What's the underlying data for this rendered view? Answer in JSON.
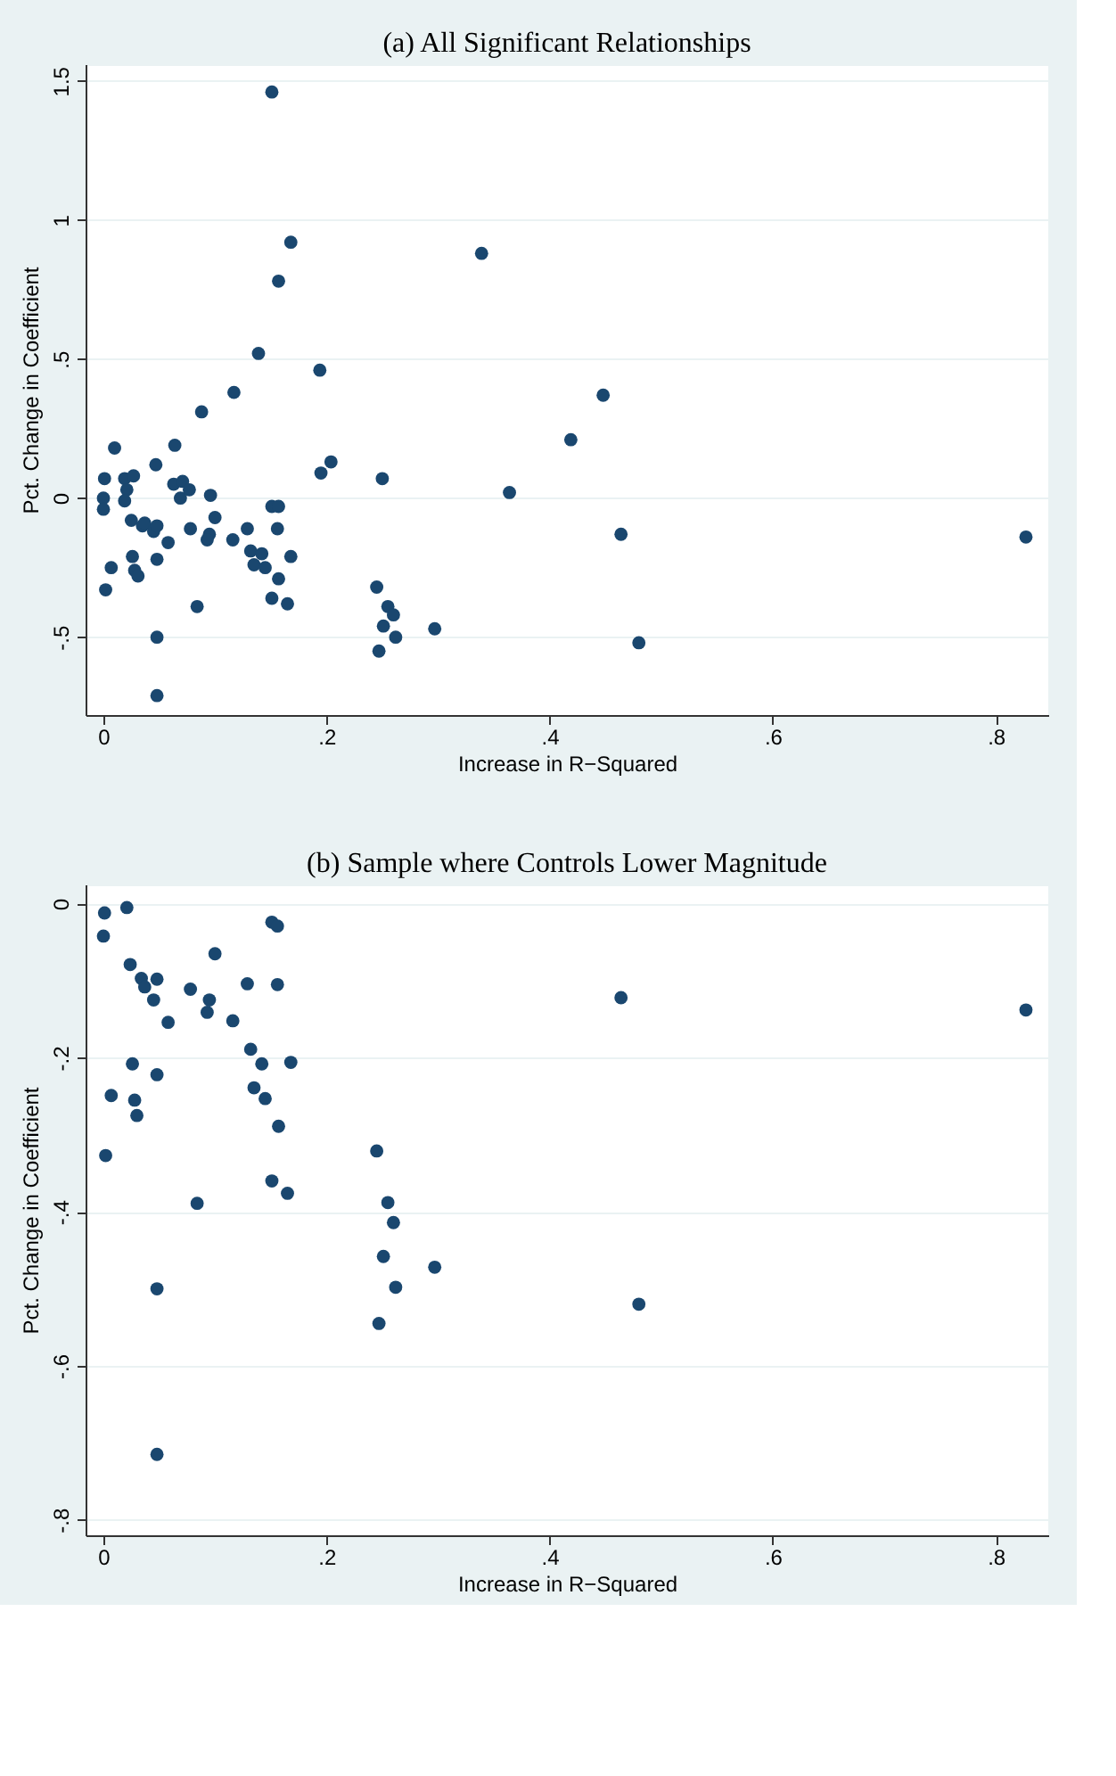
{
  "chart_data": [
    {
      "type": "scatter",
      "title": "(a) All Significant Relationships",
      "xlabel": "Increase in R−Squared",
      "ylabel": "Pct. Change in Coefficient",
      "marker": "circle",
      "grid": "y",
      "xlim": [
        -0.016,
        0.847
      ],
      "ylim": [
        -0.78,
        1.56
      ],
      "xticks": [
        {
          "value": 0,
          "label": "0"
        },
        {
          "value": 0.2,
          "label": ".2"
        },
        {
          "value": 0.4,
          "label": ".4"
        },
        {
          "value": 0.6,
          "label": ".6"
        },
        {
          "value": 0.8,
          "label": ".8"
        }
      ],
      "yticks": [
        {
          "value": -0.5,
          "label": "-.5"
        },
        {
          "value": 0,
          "label": "0"
        },
        {
          "value": 0.5,
          "label": ".5"
        },
        {
          "value": 1,
          "label": "1"
        },
        {
          "value": 1.5,
          "label": "1.5"
        }
      ],
      "series": [
        {
          "color": "#1a476f",
          "x": [
            0.151,
            0.168,
            0.157,
            0.339,
            0.139,
            0.194,
            0.117,
            0.088,
            0.01,
            0.064,
            0.195,
            0.204,
            0.25,
            0.364,
            0.001,
            0,
            0,
            0.019,
            0.027,
            0.021,
            0.019,
            0.047,
            0.063,
            0.071,
            0.069,
            0.077,
            0.096,
            0.1,
            0.078,
            0.095,
            0.093,
            0.058,
            0.025,
            0.035,
            0.037,
            0.045,
            0.048,
            0.026,
            0.028,
            0.031,
            0.007,
            0.002,
            0.048,
            0.084,
            0.048,
            0.048,
            0.116,
            0.129,
            0.132,
            0.135,
            0.142,
            0.145,
            0.151,
            0.157,
            0.156,
            0.157,
            0.168,
            0.151,
            0.165,
            0.245,
            0.255,
            0.26,
            0.251,
            0.262,
            0.247,
            0.297,
            0.448,
            0.419,
            0.464,
            0.827,
            0.48
          ],
          "values": [
            1.46,
            0.92,
            0.78,
            0.88,
            0.52,
            0.46,
            0.38,
            0.31,
            0.18,
            0.19,
            0.09,
            0.13,
            0.07,
            0.02,
            0.07,
            0,
            -0.04,
            0.07,
            0.08,
            0.03,
            -0.01,
            0.12,
            0.05,
            0.06,
            0,
            0.03,
            0.01,
            -0.07,
            -0.11,
            -0.13,
            -0.15,
            -0.16,
            -0.08,
            -0.1,
            -0.09,
            -0.12,
            -0.1,
            -0.21,
            -0.26,
            -0.28,
            -0.25,
            -0.33,
            -0.22,
            -0.39,
            -0.5,
            -0.71,
            -0.15,
            -0.11,
            -0.19,
            -0.24,
            -0.2,
            -0.25,
            -0.03,
            -0.03,
            -0.11,
            -0.29,
            -0.21,
            -0.36,
            -0.38,
            -0.32,
            -0.39,
            -0.42,
            -0.46,
            -0.5,
            -0.55,
            -0.47,
            0.37,
            0.21,
            -0.13,
            -0.14,
            -0.52
          ]
        }
      ]
    },
    {
      "type": "scatter",
      "title": "(b) Sample where Controls Lower Magnitude",
      "xlabel": "Increase in R−Squared",
      "ylabel": "Pct. Change in Coefficient",
      "marker": "circle",
      "grid": "y",
      "xlim": [
        -0.016,
        0.847
      ],
      "ylim": [
        -0.82,
        0.025
      ],
      "xticks": [
        {
          "value": 0,
          "label": "0"
        },
        {
          "value": 0.2,
          "label": ".2"
        },
        {
          "value": 0.4,
          "label": ".4"
        },
        {
          "value": 0.6,
          "label": ".6"
        },
        {
          "value": 0.8,
          "label": ".8"
        }
      ],
      "yticks": [
        {
          "value": -0.8,
          "label": "-.8"
        },
        {
          "value": -0.6,
          "label": "-.6"
        },
        {
          "value": -0.4,
          "label": "-.4"
        },
        {
          "value": -0.2,
          "label": "-.2"
        },
        {
          "value": 0,
          "label": "0"
        }
      ],
      "series": [
        {
          "color": "#1a476f",
          "x": [
            0.001,
            0.021,
            0,
            0.024,
            0.034,
            0.037,
            0.048,
            0.045,
            0.058,
            0.078,
            0.095,
            0.093,
            0.1,
            0.116,
            0.129,
            0.132,
            0.142,
            0.135,
            0.145,
            0.151,
            0.156,
            0.156,
            0.157,
            0.168,
            0.151,
            0.165,
            0.026,
            0.048,
            0.007,
            0.028,
            0.03,
            0.002,
            0.084,
            0.048,
            0.048,
            0.245,
            0.255,
            0.26,
            0.251,
            0.262,
            0.247,
            0.297,
            0.464,
            0.827,
            0.48
          ],
          "values": [
            -0.012,
            -0.005,
            -0.042,
            -0.079,
            -0.097,
            -0.108,
            -0.098,
            -0.125,
            -0.154,
            -0.111,
            -0.125,
            -0.141,
            -0.065,
            -0.152,
            -0.104,
            -0.189,
            -0.208,
            -0.239,
            -0.253,
            -0.024,
            -0.029,
            -0.105,
            -0.289,
            -0.206,
            -0.36,
            -0.376,
            -0.208,
            -0.222,
            -0.249,
            -0.255,
            -0.275,
            -0.327,
            -0.389,
            -0.5,
            -0.715,
            -0.321,
            -0.388,
            -0.414,
            -0.458,
            -0.498,
            -0.545,
            -0.472,
            -0.122,
            -0.138,
            -0.52
          ]
        }
      ]
    }
  ]
}
